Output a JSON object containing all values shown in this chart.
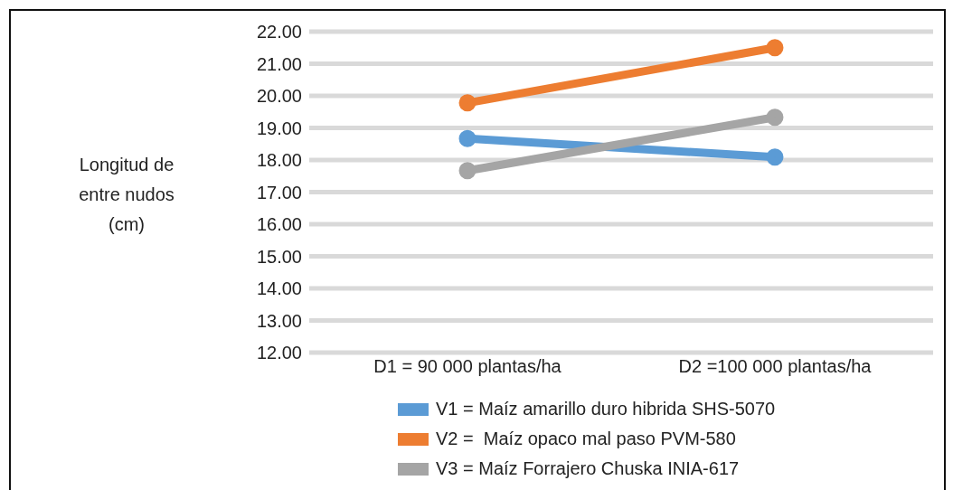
{
  "chart_data": {
    "type": "line",
    "ylabel": "Longitud de entre nudos (cm)",
    "categories": [
      "D1 =  90 000 plantas/ha",
      "D2 =100 000 plantas/ha"
    ],
    "series": [
      {
        "name": "V1 = Maíz amarillo duro hibrida SHS-5070",
        "color": "#5b9bd5",
        "values": [
          18.67,
          18.09
        ]
      },
      {
        "name": "V2 =  Maíz opaco mal paso PVM-580",
        "color": "#ed7d31",
        "values": [
          19.78,
          21.5
        ]
      },
      {
        "name": "V3 = Maíz Forrajero Chuska INIA-617",
        "color": "#a5a5a5",
        "values": [
          17.67,
          19.33
        ]
      }
    ],
    "ylim": [
      12,
      22
    ],
    "yticks": [
      {
        "value": 12,
        "label": "12.00"
      },
      {
        "value": 13,
        "label": "13.00"
      },
      {
        "value": 14,
        "label": "14.00"
      },
      {
        "value": 15,
        "label": "15.00"
      },
      {
        "value": 16,
        "label": "16.00"
      },
      {
        "value": 17,
        "label": "17.00"
      },
      {
        "value": 18,
        "label": "18.00"
      },
      {
        "value": 19,
        "label": "19.00"
      },
      {
        "value": 20,
        "label": "20.00"
      },
      {
        "value": 21,
        "label": "21.00"
      },
      {
        "value": 22,
        "label": "22.00"
      }
    ],
    "grid": "y",
    "legend": "bottom",
    "marker": "circle",
    "line_style": "solid"
  }
}
